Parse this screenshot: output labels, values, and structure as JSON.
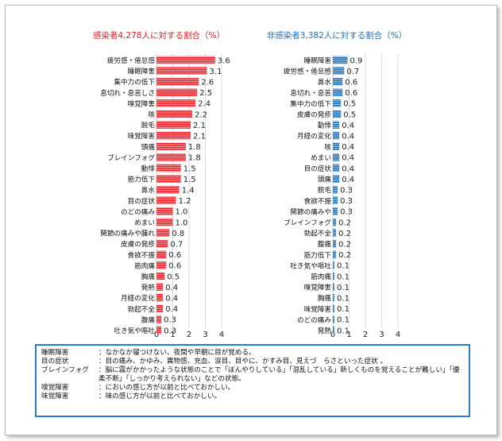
{
  "chart_data": [
    {
      "type": "bar",
      "orientation": "horizontal",
      "title": "感染者4,278人に対する割合（%）",
      "title_color": "#e02020",
      "bar_color": "#ee1c25",
      "bar_pattern": "dashed-white-horizontal",
      "xlim": [
        0,
        4
      ],
      "xticks": [
        0,
        1,
        2,
        3,
        4
      ],
      "grid": true,
      "categories": [
        "疲労感・倦怠感",
        "睡眠障害",
        "集中力の低下",
        "息切れ・息苦しさ",
        "嗅覚障害",
        "咳",
        "脱毛",
        "味覚障害",
        "頭痛",
        "ブレインフォグ",
        "動悸",
        "筋力低下",
        "鼻水",
        "目の症状",
        "のどの痛み",
        "めまい",
        "関節の痛みや腫れ",
        "皮膚の発疹",
        "食欲不振",
        "筋肉痛",
        "胸痛",
        "発熱",
        "月経の変化",
        "勃起不全",
        "腹痛",
        "吐き気や嘔吐"
      ],
      "values": [
        3.6,
        3.1,
        2.6,
        2.5,
        2.4,
        2.2,
        2.1,
        2.1,
        1.8,
        1.8,
        1.5,
        1.5,
        1.4,
        1.2,
        1.0,
        1.0,
        0.8,
        0.7,
        0.6,
        0.6,
        0.5,
        0.4,
        0.4,
        0.4,
        0.3,
        0.3
      ],
      "value_labels": [
        "3.6",
        "3.1",
        "2.6",
        "2.5",
        "2.4",
        "2.2",
        "2.1",
        "2.1",
        "1.8",
        "1.8",
        "1.5",
        "1.5",
        "1.4",
        "1.2",
        "1.0",
        "1.0",
        "0.8",
        "0.7",
        "0.6",
        "0.6",
        "0.5",
        "0.4",
        "0.4",
        "0.4",
        "0.3",
        "0.3"
      ]
    },
    {
      "type": "bar",
      "orientation": "horizontal",
      "title": "非感染者3,382人に対する割合（%）",
      "title_color": "#2070b8",
      "bar_color": "#1f6fb8",
      "bar_pattern": "dashed-white-horizontal",
      "xlim": [
        0,
        4
      ],
      "xticks": [
        0,
        1,
        2,
        3,
        4
      ],
      "grid": true,
      "categories": [
        "睡眠障害",
        "疲労感・倦怠感",
        "鼻水",
        "息切れ・息苦",
        "集中力の低下",
        "皮膚の発疹",
        "動悸",
        "月経の変化",
        "咳",
        "めまい",
        "目の症状",
        "頭痛",
        "脱毛",
        "食欲不振",
        "関節の痛みや",
        "ブレインフォグ",
        "勃起不全",
        "腹痛",
        "筋力低下",
        "吐き気や嘔吐",
        "筋肉痛",
        "嗅覚障害",
        "胸痛",
        "味覚障害",
        "のどの痛み",
        "発熱"
      ],
      "values": [
        0.9,
        0.7,
        0.6,
        0.6,
        0.5,
        0.5,
        0.4,
        0.4,
        0.4,
        0.4,
        0.4,
        0.4,
        0.3,
        0.3,
        0.3,
        0.2,
        0.2,
        0.2,
        0.2,
        0.1,
        0.1,
        0.1,
        0.1,
        0.1,
        0.1,
        0.1
      ],
      "value_labels": [
        "0.9",
        "0.7",
        "0.6",
        "0.6",
        "0.5",
        "0.5",
        "0.4",
        "0.4",
        "0.4",
        "0.4",
        "0.4",
        "0.4",
        "0.3",
        "0.3",
        "0.3",
        "0.2",
        "0.2",
        "0.2",
        "0.2",
        "0.1",
        "0.1",
        "0.1",
        "0.1",
        "0.1",
        "0.1",
        "0.1"
      ]
    }
  ],
  "notes": [
    {
      "term": "睡眠障害",
      "definition": "：なかなか寝つけない、夜間や早朝に目が覚める。"
    },
    {
      "term": "目の症状",
      "definition": "：目の痛み、かゆみ、異物感、充血、涙目、目やに、かすみ目、見えづ　らさといった症状 。"
    },
    {
      "term": "ブレインフォグ",
      "definition": "：脳に霧がかかったような状態のことで「ぼんやりしている」「混乱している」新しくものを覚えることが難しい」「優柔不断」「しっかり考えられない」などの状態。"
    },
    {
      "term": "嗅覚障害",
      "definition": "：においの感じ方が以前と比べておかしい。"
    },
    {
      "term": "味覚障害",
      "definition": "：味の感じ方が以前と比べておかしい。"
    }
  ]
}
